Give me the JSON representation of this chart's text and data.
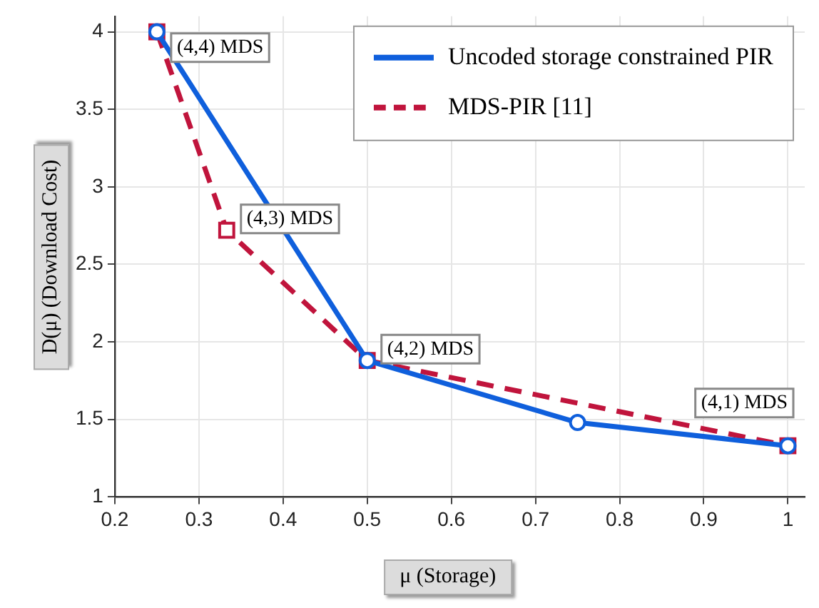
{
  "chart_data": {
    "type": "line",
    "xlabel": "μ (Storage)",
    "ylabel": "D(μ) (Download Cost)",
    "xlim": [
      0.2,
      1.02
    ],
    "xticks": [
      0.2,
      0.3,
      0.4,
      0.5,
      0.6,
      0.7,
      0.8,
      0.9,
      1
    ],
    "ylim": [
      1,
      4.1
    ],
    "yticks": [
      1,
      1.5,
      2,
      2.5,
      3,
      3.5,
      4
    ],
    "grid": true,
    "legend": "top right",
    "series": [
      {
        "name": "Uncoded storage constrained PIR",
        "color": "#0f5fdc",
        "x": [
          0.25,
          0.5,
          0.75,
          1
        ],
        "values": [
          4,
          1.88,
          1.48,
          1.33
        ],
        "marker": "circle",
        "line_style": "solid"
      },
      {
        "name": "MDS-PIR [11]",
        "color": "#c0143c",
        "x": [
          0.25,
          0.333,
          0.5,
          1
        ],
        "values": [
          4,
          2.72,
          1.88,
          1.33
        ],
        "marker": "square",
        "line_style": "dashed"
      }
    ],
    "annotations": [
      {
        "text": "(4,4) MDS",
        "x": 0.25,
        "y": 4
      },
      {
        "text": "(4,3) MDS",
        "x": 0.333,
        "y": 2.72
      },
      {
        "text": "(4,2) MDS",
        "x": 0.5,
        "y": 1.88
      },
      {
        "text": "(4,1) MDS",
        "x": 1,
        "y": 1.33
      }
    ]
  }
}
